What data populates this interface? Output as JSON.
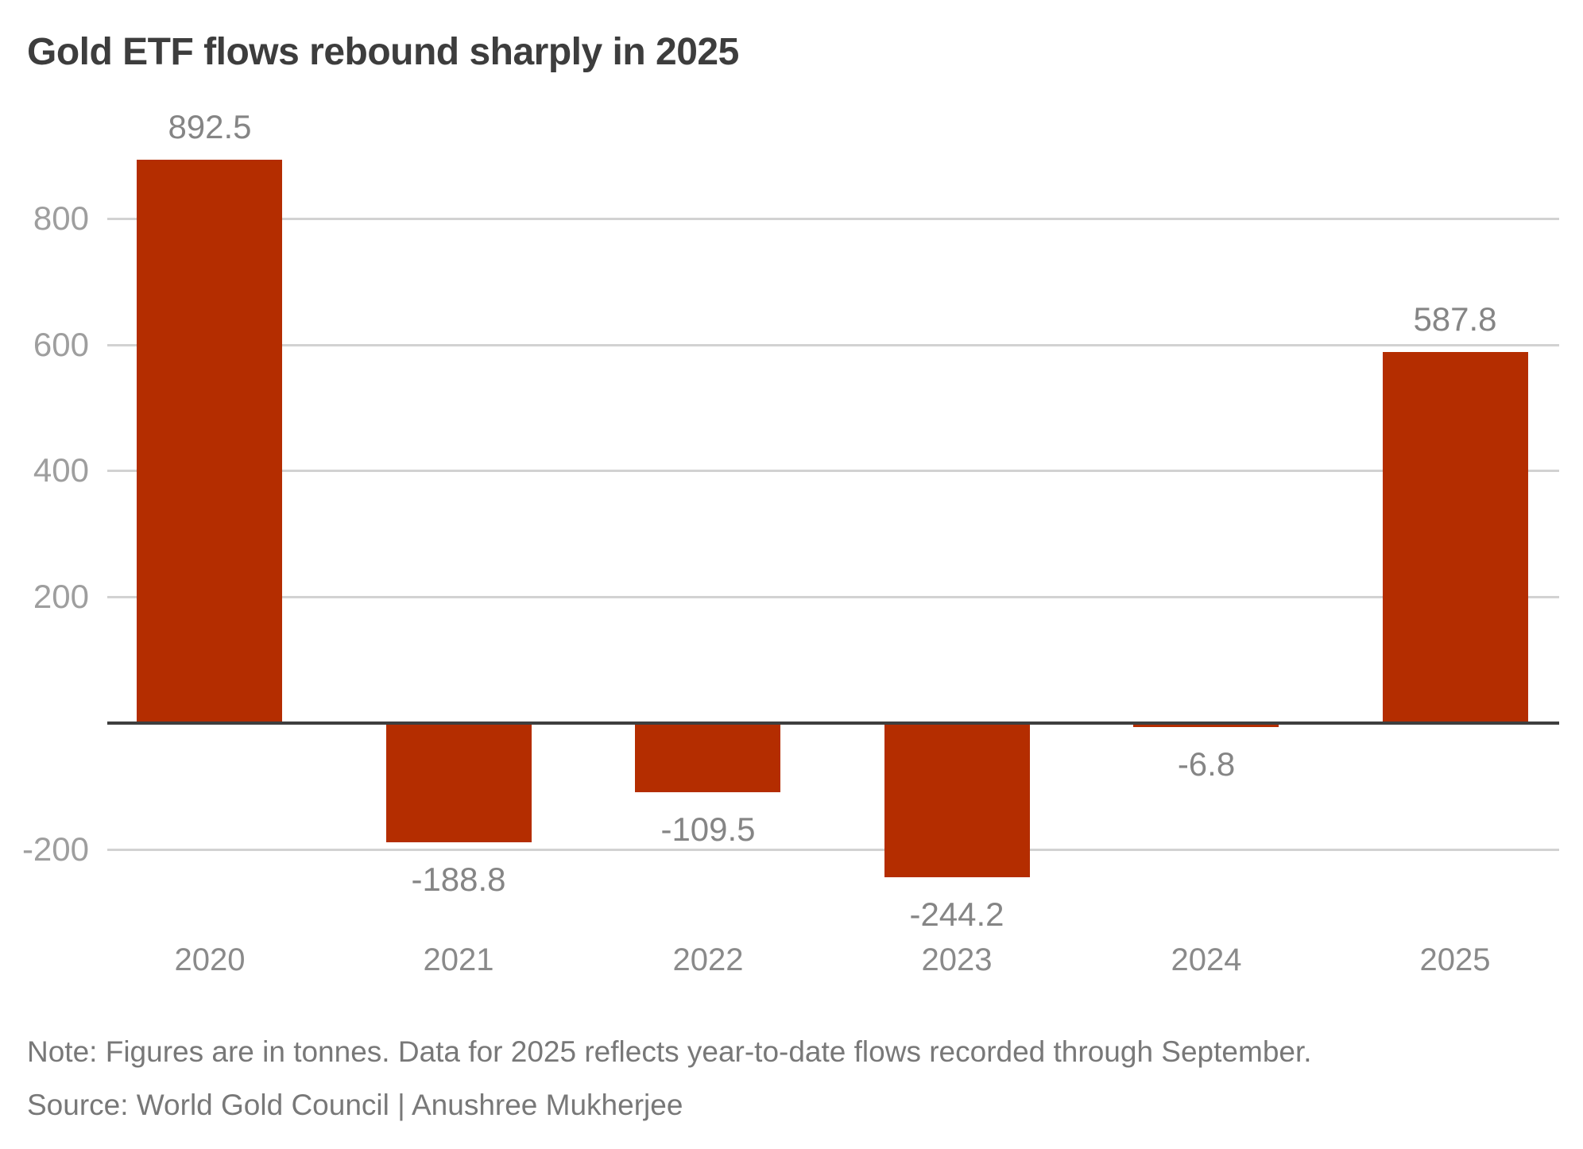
{
  "title": "Gold ETF flows rebound sharply in 2025",
  "note": "Note: Figures are in tonnes. Data for 2025 reflects year-to-date flows recorded through September.",
  "source": "Source: World Gold Council | Anushree Mukherjee",
  "colors": {
    "bar": "#B42D00",
    "gridline": "#D2D2D2",
    "axis": "#3E3E3E",
    "title_text": "#3D3D3D",
    "tick_text": "#9E9E9E",
    "value_text": "#858585",
    "year_text": "#8A8A8A",
    "note_text": "#787878",
    "background": "#FFFFFF"
  },
  "chart_data": {
    "type": "bar",
    "title": "Gold ETF flows rebound sharply in 2025",
    "categories": [
      "2020",
      "2021",
      "2022",
      "2023",
      "2024",
      "2025"
    ],
    "values": [
      892.5,
      -188.8,
      -109.5,
      -244.2,
      -6.8,
      587.8
    ],
    "value_labels": [
      "892.5",
      "-188.8",
      "-109.5",
      "-244.2",
      "-6.8",
      "587.8"
    ],
    "xlabel": "",
    "ylabel": "",
    "yticks": [
      800,
      600,
      400,
      200,
      -200
    ],
    "ylim": [
      -300,
      1000
    ],
    "grid": true,
    "legend": false,
    "unit": "tonnes"
  }
}
